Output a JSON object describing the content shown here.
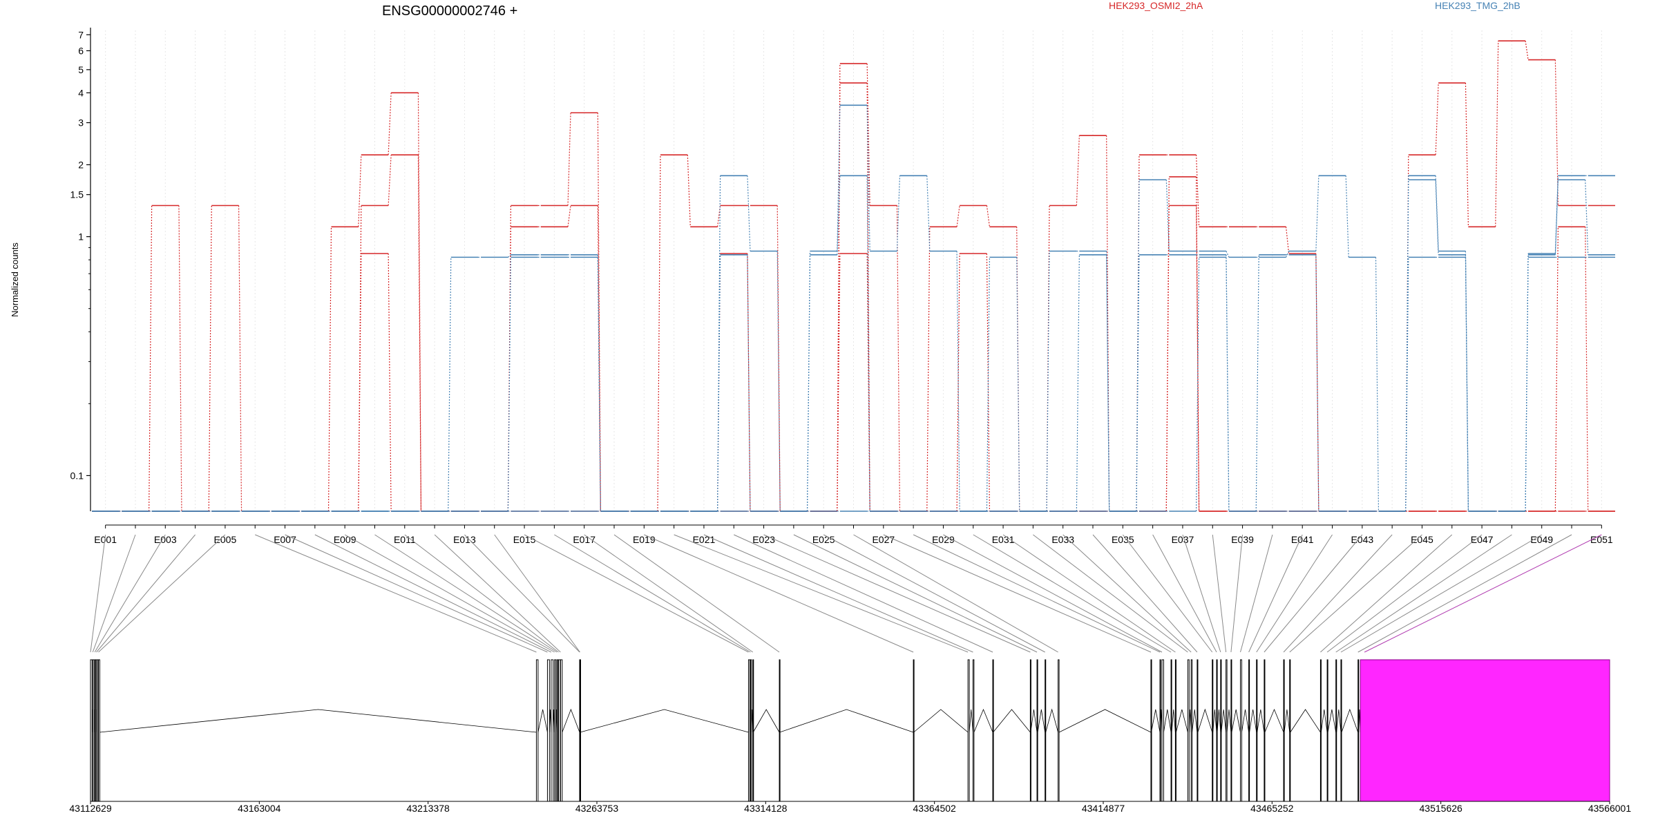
{
  "chart_data": {
    "type": "line",
    "title": "ENSG00000002746 +",
    "ylabel": "Normalized counts",
    "yscale": "log",
    "ylim": [
      0.07,
      7.3
    ],
    "ytick_labels": [
      "0.1",
      "1",
      "1.5",
      "2",
      "3",
      "4",
      "5",
      "6",
      "7"
    ],
    "ytick_values": [
      0.1,
      1,
      1.5,
      2,
      3,
      4,
      5,
      6,
      7
    ],
    "yminor_ticks": [
      0.2,
      0.3,
      0.4,
      0.5,
      0.6,
      0.7,
      0.8,
      0.9
    ],
    "exon_tick_labels": [
      "E001",
      "E003",
      "E005",
      "E007",
      "E009",
      "E011",
      "E013",
      "E015",
      "E017",
      "E019",
      "E021",
      "E023",
      "E025",
      "E027",
      "E029",
      "E031",
      "E033",
      "E035",
      "E037",
      "E039",
      "E041",
      "E043",
      "E045",
      "E047",
      "E049",
      "E051"
    ],
    "exons": [
      "E001",
      "E002",
      "E003",
      "E004",
      "E005",
      "E006",
      "E007",
      "E008",
      "E009",
      "E010",
      "E011",
      "E012",
      "E013",
      "E014",
      "E015",
      "E016",
      "E017",
      "E018",
      "E019",
      "E020",
      "E021",
      "E022",
      "E023",
      "E024",
      "E025",
      "E026",
      "E027",
      "E028",
      "E029",
      "E030",
      "E031",
      "E032",
      "E033",
      "E034",
      "E035",
      "E036",
      "E037",
      "E038",
      "E039",
      "E040",
      "E041",
      "E042",
      "E043",
      "E044",
      "E045",
      "E046",
      "E047",
      "E048",
      "E049",
      "E050",
      "E051"
    ],
    "highlight_exon": "E051",
    "series": [
      {
        "name": "HEK293_OSMI2_2hA",
        "color": "#d62728",
        "values": [
          0,
          0,
          1.35,
          0,
          1.35,
          0,
          0,
          0,
          1.1,
          2.2,
          4.0,
          0,
          0,
          0,
          1.35,
          1.35,
          3.3,
          0,
          0,
          2.2,
          1.1,
          1.35,
          1.35,
          0,
          0,
          5.3,
          1.35,
          0,
          1.1,
          1.35,
          1.1,
          0,
          1.35,
          2.65,
          0,
          2.2,
          2.2,
          1.1,
          1.1,
          1.1,
          0.85,
          0,
          0,
          0,
          2.2,
          4.4,
          1.1,
          6.6,
          5.5,
          1.35,
          1.35
        ]
      },
      {
        "name": "",
        "color": "#d62728",
        "values": [
          0,
          0,
          0,
          0,
          0,
          0,
          0,
          0,
          0,
          1.35,
          2.2,
          0,
          0,
          0,
          1.1,
          1.1,
          1.35,
          0,
          0,
          0,
          0,
          0.85,
          0,
          0,
          0,
          4.4,
          0,
          0,
          0,
          0.85,
          0,
          0,
          0,
          0,
          0,
          0,
          1.78,
          0,
          0,
          0,
          0,
          0,
          0,
          0,
          0,
          0,
          0,
          0,
          0,
          1.1,
          0
        ]
      },
      {
        "name": "",
        "color": "#d62728",
        "values": [
          0,
          0,
          0,
          0,
          0,
          0,
          0,
          0,
          0,
          0.85,
          0,
          0,
          0,
          0,
          0,
          0,
          0,
          0,
          0,
          0,
          0,
          0,
          0,
          0,
          0,
          0.85,
          0,
          0,
          0,
          0,
          0,
          0,
          0,
          0,
          0,
          0,
          1.35,
          0,
          0,
          0,
          0,
          0,
          0,
          0,
          0,
          0,
          0,
          0,
          0,
          0,
          0
        ]
      },
      {
        "name": "HEK293_TMG_2hB",
        "color": "#4682b4",
        "values": [
          0,
          0,
          0,
          0,
          0,
          0,
          0,
          0,
          0,
          0,
          0,
          0,
          0.82,
          0.82,
          0.84,
          0.84,
          0.84,
          0,
          0,
          0,
          0,
          1.8,
          0.87,
          0,
          0.87,
          3.55,
          0.87,
          1.8,
          0.87,
          0,
          0.82,
          0,
          0.87,
          0.87,
          0,
          1.73,
          0.87,
          0.87,
          0.82,
          0.82,
          0.87,
          1.8,
          0.82,
          0,
          1.8,
          0.87,
          0,
          0,
          0.85,
          1.8,
          1.8
        ]
      },
      {
        "name": "",
        "color": "#4682b4",
        "values": [
          0,
          0,
          0,
          0,
          0,
          0,
          0,
          0,
          0,
          0,
          0,
          0,
          0,
          0,
          0.82,
          0.82,
          0.82,
          0,
          0,
          0,
          0,
          0.84,
          0,
          0,
          0.84,
          1.8,
          0,
          0,
          0,
          0,
          0,
          0,
          0,
          0.84,
          0,
          0.84,
          0.84,
          0.84,
          0,
          0.84,
          0.84,
          0,
          0,
          0,
          1.73,
          0.84,
          0,
          0,
          0.84,
          1.73,
          0.84
        ]
      },
      {
        "name": "",
        "color": "#4682b4",
        "values": [
          0,
          0,
          0,
          0,
          0,
          0,
          0,
          0,
          0,
          0,
          0,
          0,
          0,
          0,
          0,
          0,
          0,
          0,
          0,
          0,
          0,
          0,
          0,
          0,
          0,
          0,
          0,
          0,
          0,
          0,
          0,
          0,
          0,
          0,
          0,
          0,
          0,
          0.82,
          0,
          0,
          0,
          0,
          0,
          0,
          0.82,
          0.82,
          0,
          0,
          0.82,
          0.82,
          0.82
        ]
      }
    ],
    "genomic_tick_labels": [
      "43112629",
      "43163004",
      "43213378",
      "43263753",
      "43314128",
      "43364502",
      "43414877",
      "43465252",
      "43515626",
      "43566001"
    ],
    "genomic_tick_values": [
      43112629,
      43163004,
      43213378,
      43263753,
      43314128,
      43364502,
      43414877,
      43465252,
      43515626,
      43566001
    ],
    "genomic_range": [
      43112629,
      43566001
    ],
    "exon_genomic_start": [
      43112629,
      43113300,
      43113900,
      43114400,
      43115000,
      43245700,
      43249000,
      43250100,
      43251100,
      43251800,
      43252300,
      43252900,
      43258600,
      43258700,
      43309000,
      43309600,
      43310300,
      43318200,
      43358200,
      43374500,
      43376000,
      43381900,
      43393100,
      43395100,
      43397500,
      43401400,
      43429100,
      43431800,
      43432400,
      43435100,
      43436400,
      43440100,
      43441100,
      43442900,
      43447400,
      43448700,
      43449900,
      43451500,
      43453000,
      43455800,
      43458300,
      43460600,
      43462900,
      43468700,
      43470500,
      43479700,
      43481700,
      43484300,
      43485800,
      43490900,
      43491600
    ],
    "exon_genomic_end": [
      43113100,
      43113700,
      43114200,
      43114800,
      43115400,
      43246200,
      43249600,
      43250700,
      43251500,
      43252100,
      43252800,
      43253400,
      43258650,
      43258750,
      43309400,
      43309900,
      43310400,
      43318300,
      43358300,
      43374900,
      43376300,
      43382000,
      43393200,
      43395300,
      43397700,
      43401700,
      43429200,
      43431900,
      43432900,
      43435300,
      43436600,
      43440500,
      43441400,
      43443100,
      43447600,
      43448900,
      43450100,
      43451800,
      43453200,
      43456200,
      43458500,
      43460800,
      43463100,
      43468900,
      43470700,
      43479900,
      43481900,
      43484500,
      43486000,
      43491100,
      43566001
    ]
  }
}
